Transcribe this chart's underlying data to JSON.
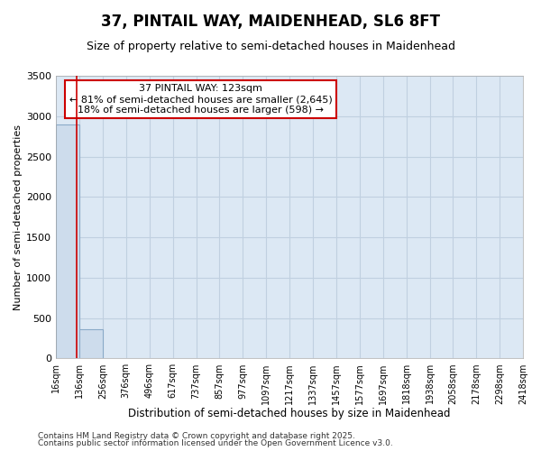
{
  "title_line1": "37, PINTAIL WAY, MAIDENHEAD, SL6 8FT",
  "title_line2": "Size of property relative to semi-detached houses in Maidenhead",
  "xlabel": "Distribution of semi-detached houses by size in Maidenhead",
  "ylabel": "Number of semi-detached properties",
  "annotation_title": "37 PINTAIL WAY: 123sqm",
  "annotation_line2": "← 81% of semi-detached houses are smaller (2,645)",
  "annotation_line3": "18% of semi-detached houses are larger (598) →",
  "footer_line1": "Contains HM Land Registry data © Crown copyright and database right 2025.",
  "footer_line2": "Contains public sector information licensed under the Open Government Licence v3.0.",
  "bin_edges": [
    16,
    136,
    256,
    376,
    496,
    617,
    737,
    857,
    977,
    1097,
    1217,
    1337,
    1457,
    1577,
    1697,
    1818,
    1938,
    2058,
    2178,
    2298,
    2418
  ],
  "bin_counts": [
    2900,
    360,
    0,
    0,
    0,
    0,
    0,
    0,
    0,
    0,
    0,
    0,
    0,
    0,
    0,
    0,
    0,
    0,
    0,
    0
  ],
  "property_size": 123,
  "bar_color": "#cddcec",
  "bar_edge_color": "#8aaac8",
  "vline_color": "#cc0000",
  "annotation_box_color": "#cc0000",
  "plot_bg_color": "#dce8f4",
  "fig_bg_color": "#ffffff",
  "grid_color": "#c0d0e0",
  "ylim": [
    0,
    3500
  ],
  "yticks": [
    0,
    500,
    1000,
    1500,
    2000,
    2500,
    3000,
    3500
  ],
  "tick_labels": [
    "16sqm",
    "136sqm",
    "256sqm",
    "376sqm",
    "496sqm",
    "617sqm",
    "737sqm",
    "857sqm",
    "977sqm",
    "1097sqm",
    "1217sqm",
    "1337sqm",
    "1457sqm",
    "1577sqm",
    "1697sqm",
    "1818sqm",
    "1938sqm",
    "2058sqm",
    "2178sqm",
    "2298sqm",
    "2418sqm"
  ],
  "title_fontsize": 12,
  "subtitle_fontsize": 9,
  "annotation_fontsize": 8,
  "footer_fontsize": 6.5
}
